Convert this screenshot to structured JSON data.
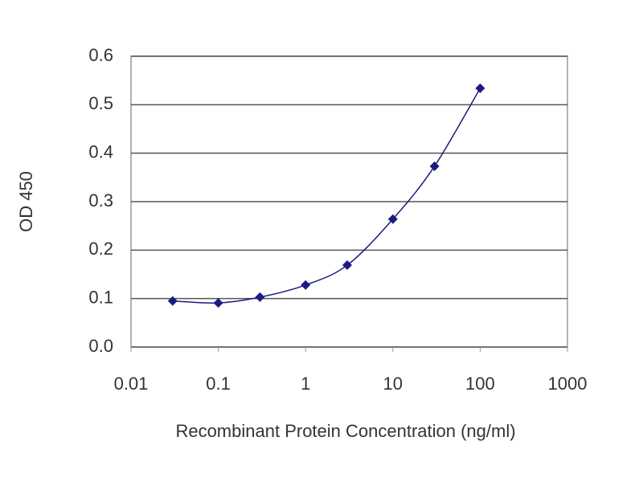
{
  "chart_data": {
    "type": "line",
    "xlabel": "Recombinant Protein Concentration (ng/ml)",
    "ylabel": "OD 450",
    "x": [
      0.03,
      0.1,
      0.3,
      1,
      3,
      10,
      30,
      100
    ],
    "series": [
      {
        "color": "#1c1c80",
        "values": [
          0.095,
          0.091,
          0.103,
          0.128,
          0.169,
          0.264,
          0.373,
          0.534
        ]
      }
    ],
    "xscale": "log",
    "xlim": [
      0.01,
      1000
    ],
    "xticks": [
      0.01,
      0.1,
      1,
      10,
      100,
      1000
    ],
    "ylim": [
      0,
      0.6
    ],
    "yticks": [
      {
        "value": 0,
        "label": "0.0"
      },
      0.1,
      0.2,
      0.3,
      0.4,
      0.5,
      0.6
    ],
    "grid": true
  }
}
